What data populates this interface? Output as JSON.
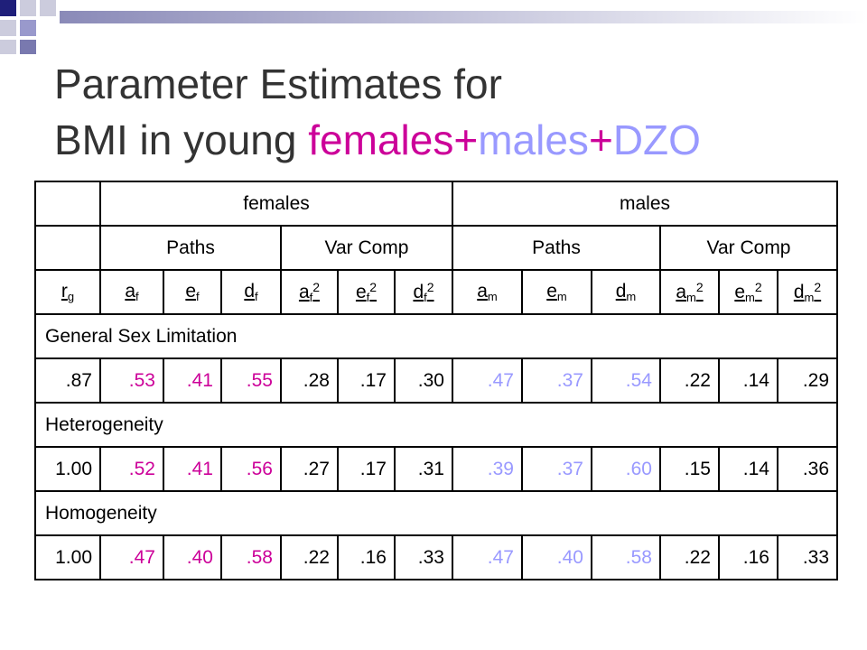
{
  "title": {
    "line1": "Parameter Estimates for",
    "line2": [
      {
        "text": "BMI in young ",
        "color": "#333333"
      },
      {
        "text": "females",
        "color": "#cc0099"
      },
      {
        "text": "+",
        "color": "#cc0099"
      },
      {
        "text": "males",
        "color": "#9999ff"
      },
      {
        "text": "+",
        "color": "#cc0099"
      },
      {
        "text": "DZO",
        "color": "#9999ff"
      }
    ]
  },
  "table": {
    "groups": [
      "females",
      "males"
    ],
    "subgroups": [
      "Paths",
      "Var Comp",
      "Paths",
      "Var Comp"
    ],
    "params": [
      {
        "base": "r",
        "sub": "g"
      },
      {
        "base": "a",
        "sub": "f"
      },
      {
        "base": "e",
        "sub": "f"
      },
      {
        "base": "d",
        "sub": "f"
      },
      {
        "base": "a",
        "sub": "f",
        "sup": "2"
      },
      {
        "base": "e",
        "sub": "f",
        "sup": "2"
      },
      {
        "base": "d",
        "sub": "f",
        "sup": "2"
      },
      {
        "base": "a",
        "sub": "m"
      },
      {
        "base": "e",
        "sub": "m"
      },
      {
        "base": "d",
        "sub": "m"
      },
      {
        "base": "a",
        "sub": "m",
        "sup": "2"
      },
      {
        "base": "e",
        "sub": "m",
        "sup": "2"
      },
      {
        "base": "d",
        "sub": "m",
        "sup": "2"
      }
    ],
    "value_colors": [
      "#000000",
      "#cc0099",
      "#cc0099",
      "#cc0099",
      "#000000",
      "#000000",
      "#000000",
      "#9999ff",
      "#9999ff",
      "#9999ff",
      "#000000",
      "#000000",
      "#000000"
    ],
    "sections": [
      {
        "label": "General Sex Limitation",
        "values": [
          ".87",
          ".53",
          ".41",
          ".55",
          ".28",
          ".17",
          ".30",
          ".47",
          ".37",
          ".54",
          ".22",
          ".14",
          ".29"
        ]
      },
      {
        "label": "Heterogeneity",
        "values": [
          "1.00",
          ".52",
          ".41",
          ".56",
          ".27",
          ".17",
          ".31",
          ".39",
          ".37",
          ".60",
          ".15",
          ".14",
          ".36"
        ]
      },
      {
        "label": "Homogeneity",
        "values": [
          "1.00",
          ".47",
          ".40",
          ".58",
          ".22",
          ".16",
          ".33",
          ".47",
          ".40",
          ".58",
          ".22",
          ".16",
          ".33"
        ]
      }
    ]
  }
}
